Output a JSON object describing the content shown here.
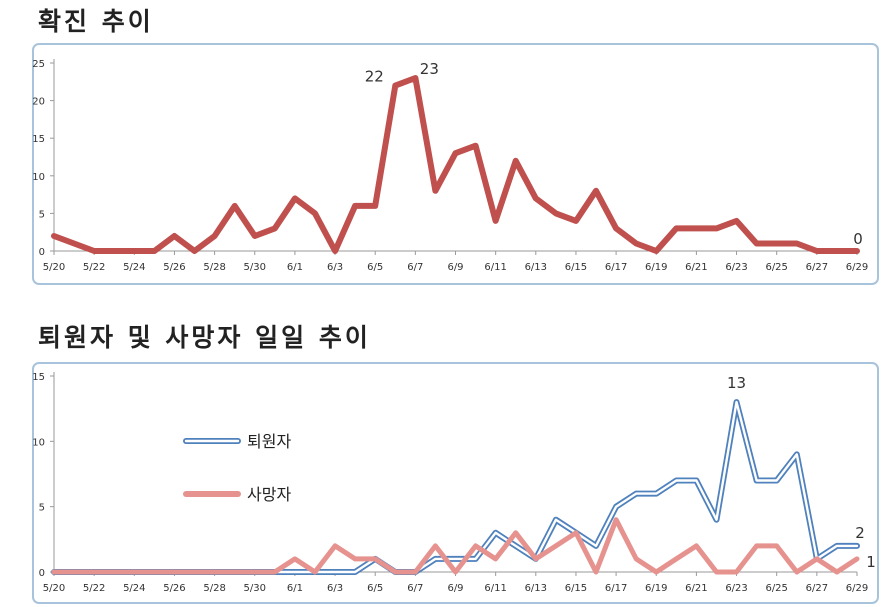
{
  "charts": {
    "confirmed": {
      "title": "확진 추이"
    },
    "discharged_deaths": {
      "title": "퇴원자 및 사망자 일일 추이"
    }
  },
  "chart_data": [
    {
      "type": "line",
      "title": "확진 추이",
      "x": [
        "5/20",
        "5/21",
        "5/22",
        "5/23",
        "5/24",
        "5/25",
        "5/26",
        "5/27",
        "5/28",
        "5/29",
        "5/30",
        "5/31",
        "6/1",
        "6/2",
        "6/3",
        "6/4",
        "6/5",
        "6/6",
        "6/7",
        "6/8",
        "6/9",
        "6/10",
        "6/11",
        "6/12",
        "6/13",
        "6/14",
        "6/15",
        "6/16",
        "6/17",
        "6/18",
        "6/19",
        "6/20",
        "6/21",
        "6/22",
        "6/23",
        "6/24",
        "6/25",
        "6/26",
        "6/27",
        "6/28",
        "6/29"
      ],
      "x_tick_labels": [
        "5/20",
        "5/22",
        "5/24",
        "5/26",
        "5/28",
        "5/30",
        "6/1",
        "6/3",
        "6/5",
        "6/7",
        "6/9",
        "6/11",
        "6/13",
        "6/15",
        "6/17",
        "6/19",
        "6/21",
        "6/23",
        "6/25",
        "6/27",
        "6/29"
      ],
      "series": [
        {
          "values": [
            2,
            1,
            0,
            0,
            0,
            0,
            2,
            0,
            2,
            6,
            2,
            3,
            7,
            5,
            0,
            6,
            6,
            22,
            23,
            8,
            13,
            14,
            4,
            12,
            7,
            5,
            4,
            8,
            3,
            1,
            0,
            3,
            3,
            3,
            4,
            1,
            1,
            1,
            0,
            0,
            0
          ],
          "color": "#c0504d"
        }
      ],
      "data_labels": [
        {
          "index": 17,
          "text": "22"
        },
        {
          "index": 18,
          "text": "23"
        },
        {
          "index": 40,
          "text": "0"
        }
      ],
      "ylim": [
        0,
        25
      ],
      "y_ticks": [
        0,
        5,
        10,
        15,
        20,
        25
      ],
      "grid": false,
      "legend": "none"
    },
    {
      "type": "line",
      "title": "퇴원자 및 사망자 일일 추이",
      "x": [
        "5/20",
        "5/21",
        "5/22",
        "5/23",
        "5/24",
        "5/25",
        "5/26",
        "5/27",
        "5/28",
        "5/29",
        "5/30",
        "5/31",
        "6/1",
        "6/2",
        "6/3",
        "6/4",
        "6/5",
        "6/6",
        "6/7",
        "6/8",
        "6/9",
        "6/10",
        "6/11",
        "6/12",
        "6/13",
        "6/14",
        "6/15",
        "6/16",
        "6/17",
        "6/18",
        "6/19",
        "6/20",
        "6/21",
        "6/22",
        "6/23",
        "6/24",
        "6/25",
        "6/26",
        "6/27",
        "6/28",
        "6/29"
      ],
      "x_tick_labels": [
        "5/20",
        "5/22",
        "5/24",
        "5/26",
        "5/28",
        "5/30",
        "6/1",
        "6/3",
        "6/5",
        "6/7",
        "6/9",
        "6/11",
        "6/13",
        "6/15",
        "6/17",
        "6/19",
        "6/21",
        "6/23",
        "6/25",
        "6/27",
        "6/29"
      ],
      "series": [
        {
          "name": "퇴원자",
          "values": [
            0,
            0,
            0,
            0,
            0,
            0,
            0,
            0,
            0,
            0,
            0,
            0,
            0,
            0,
            0,
            0,
            1,
            0,
            0,
            1,
            1,
            1,
            3,
            2,
            1,
            4,
            3,
            2,
            5,
            6,
            6,
            7,
            7,
            4,
            13,
            7,
            7,
            9,
            1,
            2,
            2
          ],
          "color": "#4f81bd",
          "style": "double"
        },
        {
          "name": "사망자",
          "values": [
            0,
            0,
            0,
            0,
            0,
            0,
            0,
            0,
            0,
            0,
            0,
            0,
            1,
            0,
            2,
            1,
            1,
            0,
            0,
            2,
            0,
            2,
            1,
            3,
            1,
            2,
            3,
            0,
            4,
            1,
            0,
            1,
            2,
            0,
            0,
            2,
            2,
            0,
            1,
            0,
            1
          ],
          "color": "#e6938f",
          "style": "thick"
        }
      ],
      "data_labels": [
        {
          "series": 0,
          "index": 34,
          "text": "13"
        },
        {
          "series": 0,
          "index": 40,
          "text": "2"
        },
        {
          "series": 1,
          "index": 40,
          "text": "1"
        }
      ],
      "ylim": [
        0,
        15
      ],
      "y_ticks": [
        0,
        5,
        10,
        15
      ],
      "grid": false,
      "legend": "left"
    }
  ]
}
